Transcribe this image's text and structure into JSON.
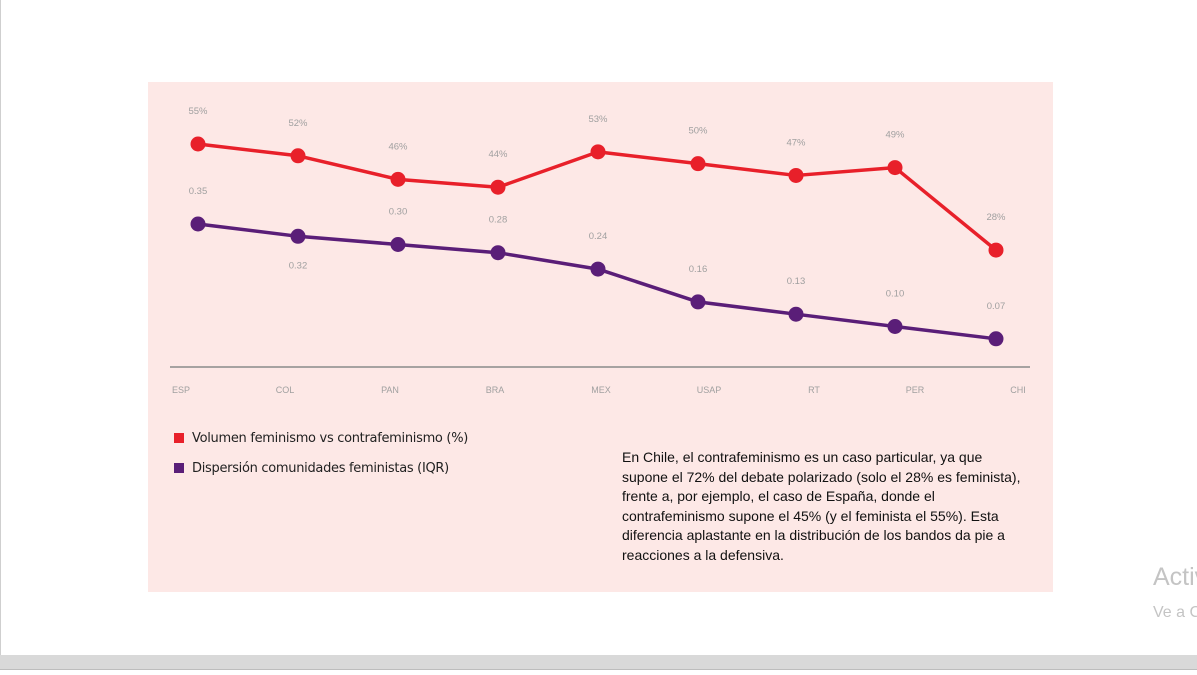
{
  "chart_data": {
    "type": "line",
    "categories": [
      "ESP",
      "COL",
      "PAN",
      "BRA",
      "MEX",
      "USAP",
      "RT",
      "PER",
      "CHI"
    ],
    "series": [
      {
        "name": "Volumen feminismo vs contrafeminismo (%)",
        "color": "#e8202a",
        "values": [
          55,
          52,
          46,
          44,
          53,
          50,
          47,
          49,
          28
        ],
        "labels": [
          "55%",
          "52%",
          "46%",
          "44%",
          "53%",
          "50%",
          "47%",
          "49%",
          "28%"
        ]
      },
      {
        "name": "Dispersión comunidades feministas (IQR)",
        "color": "#5a1e78",
        "values": [
          0.35,
          0.32,
          0.3,
          0.28,
          0.24,
          0.16,
          0.13,
          0.1,
          0.07
        ],
        "labels": [
          "0.35",
          "0.32",
          "0.30",
          "0.28",
          "0.24",
          "0.16",
          "0.13",
          "0.10",
          "0.07"
        ]
      }
    ],
    "legend_position": "bottom-left",
    "grid": false
  },
  "note_text": "En Chile, el contrafeminismo es un caso particular, ya que supone el 72% del debate polarizado (solo el 28% es feminista), frente a, por ejemplo, el caso de España, donde el contrafeminismo supone el 45% (y el feminista el 55%). Esta diferencia aplastante en la distribución de los bandos da pie a reacciones a la defensiva.",
  "watermark": {
    "title": "Activar Windows",
    "subtitle": "Ve a Configuración para activar Windows."
  },
  "colors": {
    "panel_background": "#fde8e6",
    "axis": "#8a8a8a",
    "label_text": "#a0a0a0"
  }
}
